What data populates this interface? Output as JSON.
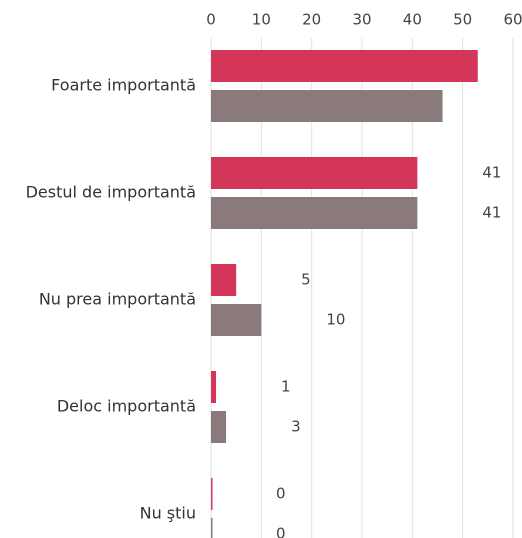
{
  "chart_data": {
    "type": "barh",
    "categories": [
      "Foarte importantă",
      "Destul de importantă",
      "Nu prea importantă",
      "Deloc importantă",
      "Nu ştiu"
    ],
    "series": [
      {
        "color": "#d4365a",
        "values": [
          53,
          41,
          5,
          1,
          0
        ]
      },
      {
        "color": "#8a7a7c",
        "values": [
          46,
          41,
          10,
          3,
          0
        ]
      }
    ],
    "xlim": [
      0,
      60
    ],
    "xticks": [
      0,
      10,
      20,
      30,
      40,
      50,
      60
    ],
    "grid": true
  }
}
